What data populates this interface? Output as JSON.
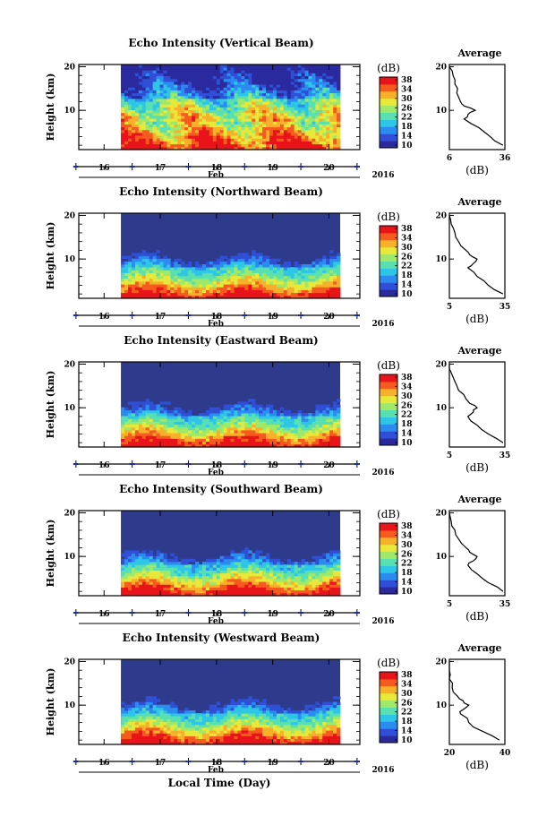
{
  "chart_data": [
    {
      "type": "heatmap",
      "title": "Echo Intensity (Vertical Beam)",
      "ylabel": "Height (km)",
      "yticks": [
        10,
        20
      ],
      "xticks": [
        "16",
        "17",
        "18",
        "19",
        "20"
      ],
      "xlabel": "Feb",
      "year": "2016",
      "colorbar": {
        "unit": "(dB)",
        "ticks": [
          "10",
          "14",
          "18",
          "22",
          "26",
          "30",
          "34",
          "38"
        ]
      },
      "data_start_day": 16.3,
      "data_end_day": 20.2,
      "average": {
        "title": "Average",
        "xlabel": "(dB)",
        "xticks": [
          "6",
          "36"
        ],
        "yticks": [
          10,
          20
        ],
        "heights": [
          2,
          4,
          6,
          8,
          9,
          10,
          11,
          12,
          14,
          16,
          18,
          20
        ],
        "values": [
          35,
          28,
          22,
          14,
          16,
          20,
          14,
          12,
          10,
          9,
          8,
          6
        ]
      }
    },
    {
      "type": "heatmap",
      "title": "Echo Intensity (Northward Beam)",
      "ylabel": "Height (km)",
      "yticks": [
        10,
        20
      ],
      "xticks": [
        "16",
        "17",
        "18",
        "19",
        "20"
      ],
      "xlabel": "Feb",
      "year": "2016",
      "colorbar": {
        "unit": "(dB)",
        "ticks": [
          "10",
          "14",
          "18",
          "22",
          "26",
          "30",
          "34",
          "38"
        ]
      },
      "data_start_day": 16.3,
      "data_end_day": 20.2,
      "average": {
        "title": "Average",
        "xlabel": "(dB)",
        "xticks": [
          "5",
          "35"
        ],
        "yticks": [
          10,
          20
        ],
        "heights": [
          2,
          4,
          6,
          8,
          9,
          10,
          11,
          12,
          14,
          16,
          18,
          20
        ],
        "values": [
          34,
          26,
          20,
          15,
          18,
          20,
          16,
          14,
          10,
          8,
          6,
          5
        ]
      }
    },
    {
      "type": "heatmap",
      "title": "Echo Intensity (Eastward Beam)",
      "ylabel": "Height (km)",
      "yticks": [
        10,
        20
      ],
      "xticks": [
        "16",
        "17",
        "18",
        "19",
        "20"
      ],
      "xlabel": "Feb",
      "year": "2016",
      "colorbar": {
        "unit": "(dB)",
        "ticks": [
          "10",
          "14",
          "18",
          "22",
          "26",
          "30",
          "34",
          "38"
        ]
      },
      "data_start_day": 16.3,
      "data_end_day": 20.2,
      "average": {
        "title": "Average",
        "xlabel": "(dB)",
        "xticks": [
          "5",
          "35"
        ],
        "yticks": [
          10,
          20
        ],
        "heights": [
          2,
          4,
          6,
          8,
          9,
          10,
          11,
          12,
          14,
          16,
          18,
          20
        ],
        "values": [
          34,
          26,
          20,
          15,
          18,
          20,
          16,
          14,
          10,
          8,
          6,
          5
        ]
      }
    },
    {
      "type": "heatmap",
      "title": "Echo Intensity (Southward Beam)",
      "ylabel": "Height (km)",
      "yticks": [
        10,
        20
      ],
      "xticks": [
        "16",
        "17",
        "18",
        "19",
        "20"
      ],
      "xlabel": "Feb",
      "year": "2016",
      "colorbar": {
        "unit": "(dB)",
        "ticks": [
          "10",
          "14",
          "18",
          "22",
          "26",
          "30",
          "34",
          "38"
        ]
      },
      "data_start_day": 16.3,
      "data_end_day": 20.2,
      "average": {
        "title": "Average",
        "xlabel": "(dB)",
        "xticks": [
          "5",
          "35"
        ],
        "yticks": [
          10,
          20
        ],
        "heights": [
          2,
          4,
          6,
          8,
          9,
          10,
          11,
          12,
          14,
          16,
          18,
          20
        ],
        "values": [
          34,
          26,
          20,
          15,
          18,
          20,
          16,
          14,
          10,
          8,
          6,
          5
        ]
      }
    },
    {
      "type": "heatmap",
      "title": "Echo Intensity (Westward Beam)",
      "ylabel": "Height (km)",
      "yticks": [
        10,
        20
      ],
      "xticks": [
        "16",
        "17",
        "18",
        "19",
        "20"
      ],
      "xlabel": "Feb",
      "year": "2016",
      "colorbar": {
        "unit": "(dB)",
        "ticks": [
          "10",
          "14",
          "18",
          "22",
          "26",
          "30",
          "34",
          "38"
        ]
      },
      "data_start_day": 16.3,
      "data_end_day": 20.2,
      "average": {
        "title": "Average",
        "xlabel": "(dB)",
        "xticks": [
          "20",
          "40"
        ],
        "yticks": [
          10,
          20
        ],
        "heights": [
          2,
          4,
          6,
          8,
          9,
          10,
          11,
          12,
          14,
          16,
          18,
          20
        ],
        "values": [
          38,
          32,
          27,
          24,
          25,
          27,
          25,
          23,
          21,
          20,
          19,
          18
        ]
      }
    }
  ],
  "figure_xlabel": "Local Time (Day)",
  "colors": {
    "colormap": [
      "#2a2a9e",
      "#2f4fd6",
      "#2b8cf0",
      "#2ec6e6",
      "#58e0b0",
      "#9ee86a",
      "#e8e83a",
      "#f7b02a",
      "#f55a1e",
      "#e8141a"
    ],
    "background": "#2e3a8c",
    "marker": "#1a2ab0"
  }
}
